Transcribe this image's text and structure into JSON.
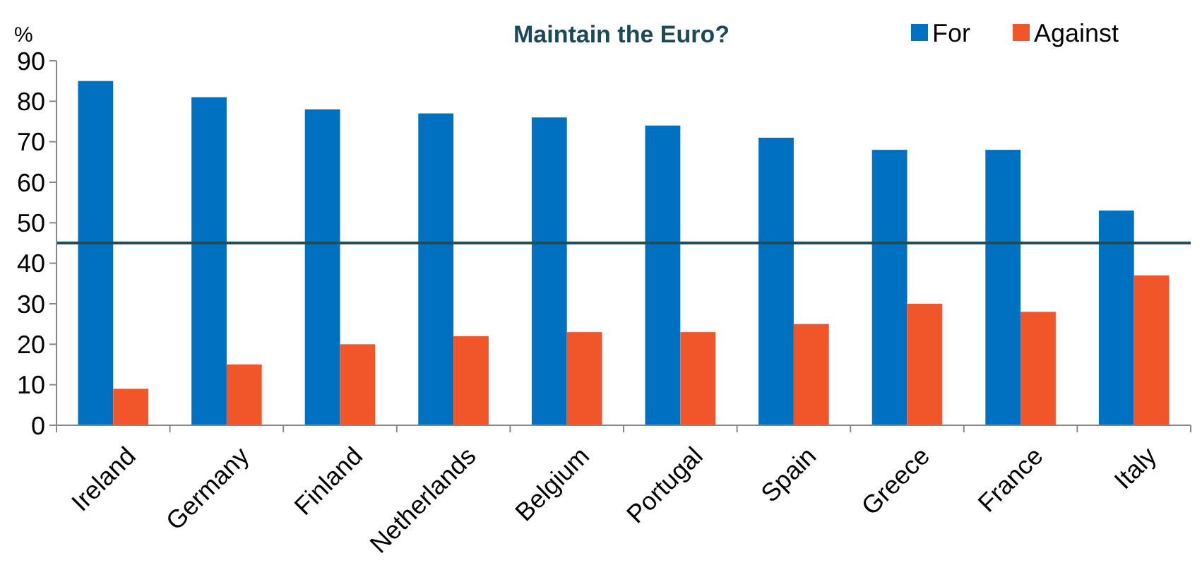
{
  "chart_data": {
    "type": "bar",
    "title": "Maintain the Euro?",
    "ylabel": "%",
    "categories": [
      "Ireland",
      "Germany",
      "Finland",
      "Netherlands",
      "Belgium",
      "Portugal",
      "Spain",
      "Greece",
      "France",
      "Italy"
    ],
    "series": [
      {
        "name": "For",
        "color": "#0070c0",
        "values": [
          85,
          81,
          78,
          77,
          76,
          74,
          71,
          68,
          68,
          53
        ]
      },
      {
        "name": "Against",
        "color": "#f0562a",
        "values": [
          9,
          15,
          20,
          22,
          23,
          23,
          25,
          30,
          28,
          37
        ]
      }
    ],
    "ylim": [
      0,
      90
    ],
    "yticks": [
      0,
      10,
      20,
      30,
      40,
      50,
      60,
      70,
      80,
      90
    ],
    "ref_lines": [
      {
        "axis": "y",
        "value": 45,
        "color": "#1f4e5a"
      }
    ],
    "grid": false,
    "legend": "top right"
  }
}
